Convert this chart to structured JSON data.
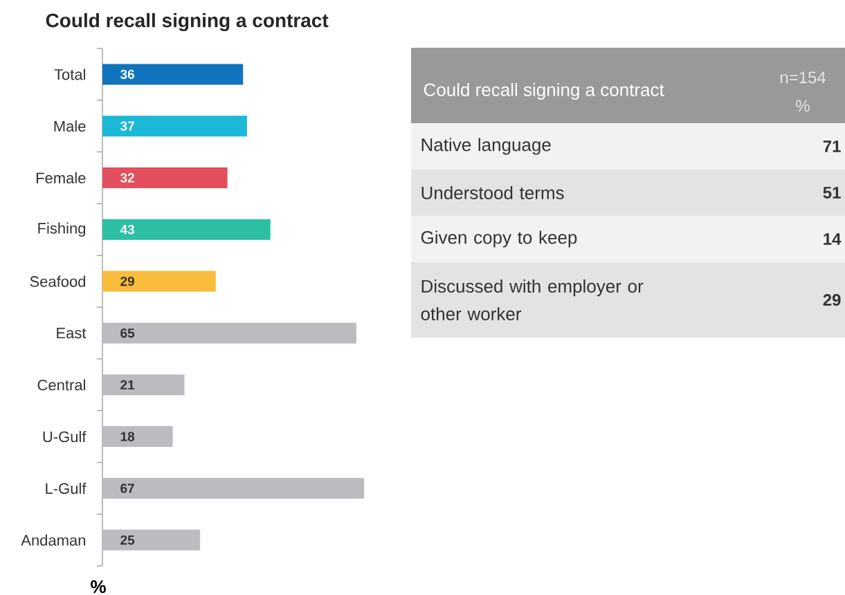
{
  "chart_data": [
    {
      "type": "bar",
      "orientation": "horizontal",
      "title": "Could recall signing a contract",
      "xlabel": "%",
      "categories": [
        "Total",
        "Male",
        "Female",
        "Fishing",
        "Seafood",
        "East",
        "Central",
        "U-Gulf",
        "L-Gulf",
        "Andaman"
      ],
      "values": [
        36,
        37,
        32,
        43,
        29,
        65,
        21,
        18,
        67,
        25
      ],
      "colors": [
        "#1174be",
        "#1cb8d8",
        "#e34f5e",
        "#2cbfa4",
        "#f9bc3c",
        "#bbbcc0",
        "#bbbcc0",
        "#bbbcc0",
        "#bbbcc0",
        "#bbbcc0"
      ],
      "data_labels": true
    },
    {
      "type": "other",
      "title": "Could recall signing a contract",
      "annotations": [
        "n=154",
        "%"
      ],
      "categories": [
        "Native language",
        "Understood terms",
        "Given copy to keep",
        "Discussed with employer or other worker"
      ],
      "values": [
        71,
        51,
        14,
        29
      ],
      "data_labels": true
    }
  ]
}
